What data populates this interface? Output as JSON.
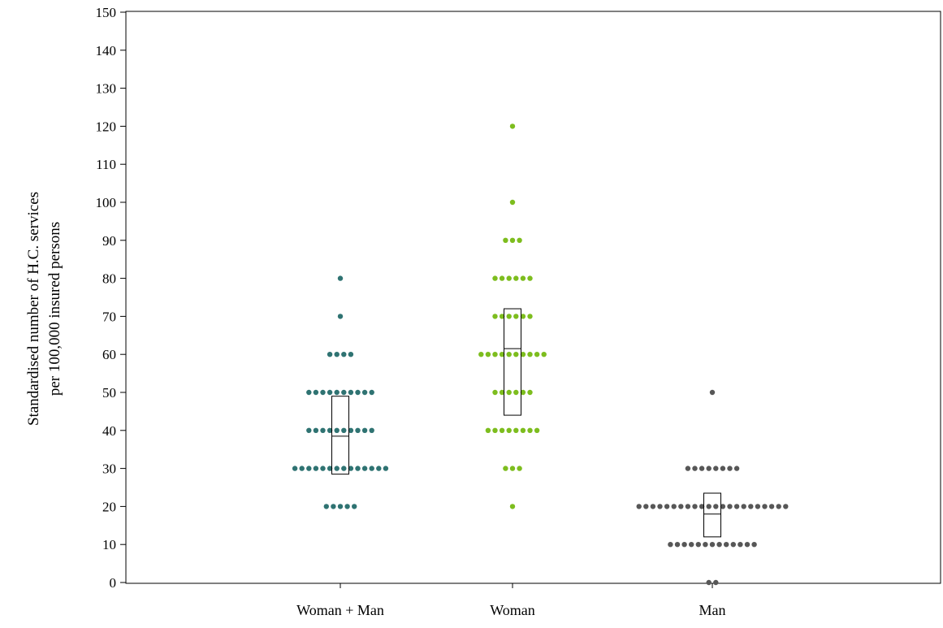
{
  "chart_data": {
    "type": "scatter",
    "subtype": "dot plot with box",
    "title": "",
    "xlabel": "",
    "ylabel_lines": [
      "Standardised number of H.C. services",
      "per 100,000 insured persons"
    ],
    "ylim": [
      0,
      150
    ],
    "yticks": [
      0,
      10,
      20,
      30,
      40,
      50,
      60,
      70,
      80,
      90,
      100,
      110,
      120,
      130,
      140,
      150
    ],
    "grid": false,
    "legend": "none",
    "categories": [
      "Woman + Man",
      "Woman",
      "Man"
    ],
    "series": [
      {
        "category": "Woman + Man",
        "color": "#2f7372",
        "counts": [
          {
            "value": 20,
            "count": 5
          },
          {
            "value": 30,
            "count": 14
          },
          {
            "value": 40,
            "count": 10
          },
          {
            "value": 50,
            "count": 10
          },
          {
            "value": 60,
            "count": 4
          },
          {
            "value": 70,
            "count": 1
          },
          {
            "value": 80,
            "count": 1
          }
        ],
        "box": {
          "q1": 28.5,
          "median": 38.5,
          "q3": 49
        }
      },
      {
        "category": "Woman",
        "color": "#7dbd1e",
        "counts": [
          {
            "value": 20,
            "count": 1
          },
          {
            "value": 30,
            "count": 3
          },
          {
            "value": 40,
            "count": 8
          },
          {
            "value": 50,
            "count": 6
          },
          {
            "value": 60,
            "count": 10
          },
          {
            "value": 70,
            "count": 6
          },
          {
            "value": 80,
            "count": 6
          },
          {
            "value": 90,
            "count": 3
          },
          {
            "value": 100,
            "count": 1
          },
          {
            "value": 120,
            "count": 1
          }
        ],
        "box": {
          "q1": 44,
          "median": 61.5,
          "q3": 72
        }
      },
      {
        "category": "Man",
        "color": "#575757",
        "counts": [
          {
            "value": 0,
            "count": 2
          },
          {
            "value": 10,
            "count": 13
          },
          {
            "value": 20,
            "count": 22
          },
          {
            "value": 30,
            "count": 8
          },
          {
            "value": 50,
            "count": 1
          }
        ],
        "box": {
          "q1": 12,
          "median": 18,
          "q3": 23.5
        }
      }
    ]
  }
}
